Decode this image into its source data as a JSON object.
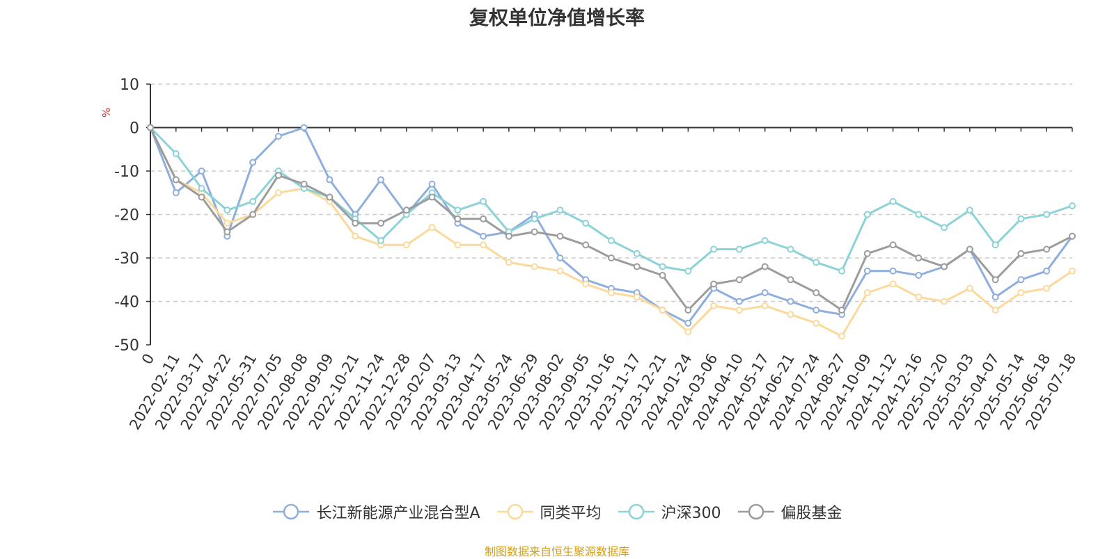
{
  "chart_data": {
    "type": "line",
    "title": "复权单位净值增长率",
    "ylabel": "%",
    "ylim": [
      -50,
      10
    ],
    "yticks": [
      10,
      0,
      -10,
      -20,
      -30,
      -40,
      -50
    ],
    "grid": true,
    "legend_position": "bottom",
    "x_tick_labels": [
      "0",
      "2022-02-11",
      "2022-03-17",
      "2022-04-22",
      "2022-05-31",
      "2022-07-05",
      "2022-08-08",
      "2022-09-09",
      "2022-10-21",
      "2022-11-24",
      "2022-12-28",
      "2023-02-07",
      "2023-03-13",
      "2023-04-17",
      "2023-05-24",
      "2023-06-29",
      "2023-08-02",
      "2023-09-05",
      "2023-10-16",
      "2023-11-17",
      "2023-12-21",
      "2024-01-24",
      "2024-03-06",
      "2024-04-10",
      "2024-05-17",
      "2024-06-21",
      "2024-07-24",
      "2024-08-27",
      "2024-10-09",
      "2024-11-12",
      "2024-12-16",
      "2025-01-20",
      "2025-03-03",
      "2025-04-07",
      "2025-05-14",
      "2025-06-18",
      "2025-07-18"
    ],
    "series": [
      {
        "name": "长江新能源产业混合型A",
        "color": "#8eaede",
        "values": [
          0,
          -15,
          -10,
          -25,
          -8,
          -2,
          0,
          -12,
          -20,
          -12,
          -20,
          -13,
          -22,
          -25,
          -24,
          -20,
          -30,
          -35,
          -37,
          -38,
          -42,
          -45,
          -37,
          -40,
          -38,
          -40,
          -42,
          -43,
          -33,
          -33,
          -34,
          -32,
          -28,
          -39,
          -35,
          -33,
          -25
        ]
      },
      {
        "name": "同类平均",
        "color": "#fcd99a",
        "values": [
          0,
          -12,
          -15,
          -22,
          -20,
          -15,
          -14,
          -17,
          -25,
          -27,
          -27,
          -23,
          -27,
          -27,
          -31,
          -32,
          -33,
          -36,
          -38,
          -39,
          -42,
          -47,
          -41,
          -42,
          -41,
          -43,
          -45,
          -48,
          -38,
          -36,
          -39,
          -40,
          -37,
          -42,
          -38,
          -37,
          -33
        ]
      },
      {
        "name": "沪深300",
        "color": "#8bd3d6",
        "values": [
          0,
          -6,
          -14,
          -19,
          -17,
          -10,
          -14,
          -16,
          -21,
          -26,
          -20,
          -15,
          -19,
          -17,
          -24,
          -21,
          -19,
          -22,
          -26,
          -29,
          -32,
          -33,
          -28,
          -28,
          -26,
          -28,
          -31,
          -33,
          -20,
          -17,
          -20,
          -23,
          -19,
          -27,
          -21,
          -20,
          -18
        ]
      },
      {
        "name": "偏股基金",
        "color": "#9c9c9c",
        "values": [
          0,
          -12,
          -16,
          -24,
          -20,
          -11,
          -13,
          -16,
          -22,
          -22,
          -19,
          -16,
          -21,
          -21,
          -25,
          -24,
          -25,
          -27,
          -30,
          -32,
          -34,
          -42,
          -36,
          -35,
          -32,
          -35,
          -38,
          -42,
          -29,
          -27,
          -30,
          -32,
          -28,
          -35,
          -29,
          -28,
          -25
        ]
      }
    ]
  },
  "footer_text": "制图数据来自恒生聚源数据库"
}
